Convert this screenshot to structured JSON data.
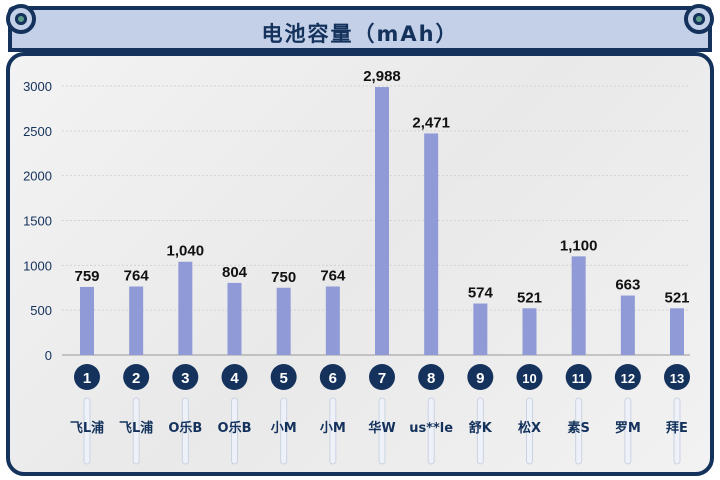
{
  "chart_data": {
    "type": "bar",
    "title": "电池容量（mAh）",
    "categories": [
      "飞L浦",
      "飞L浦",
      "O乐B",
      "O乐B",
      "小M",
      "小M",
      "华W",
      "us**le",
      "舒K",
      "松X",
      "素S",
      "罗M",
      "拜E"
    ],
    "indices": [
      "1",
      "2",
      "3",
      "4",
      "5",
      "6",
      "7",
      "8",
      "9",
      "10",
      "11",
      "12",
      "13"
    ],
    "values": [
      759,
      764,
      1040,
      804,
      750,
      764,
      2988,
      2471,
      574,
      521,
      1100,
      663,
      521
    ],
    "value_labels": [
      "759",
      "764",
      "1,040",
      "804",
      "750",
      "764",
      "2,988",
      "2,471",
      "574",
      "521",
      "1,100",
      "663",
      "521"
    ],
    "yticks": [
      0,
      500,
      1000,
      1500,
      2000,
      2500,
      3000
    ],
    "ylim": [
      0,
      3000
    ],
    "grid": true,
    "colors": {
      "bar": "#8f9ad6",
      "badge": "#14325c",
      "frame": "#14325c",
      "titlebar": "#c3d0e8"
    }
  }
}
